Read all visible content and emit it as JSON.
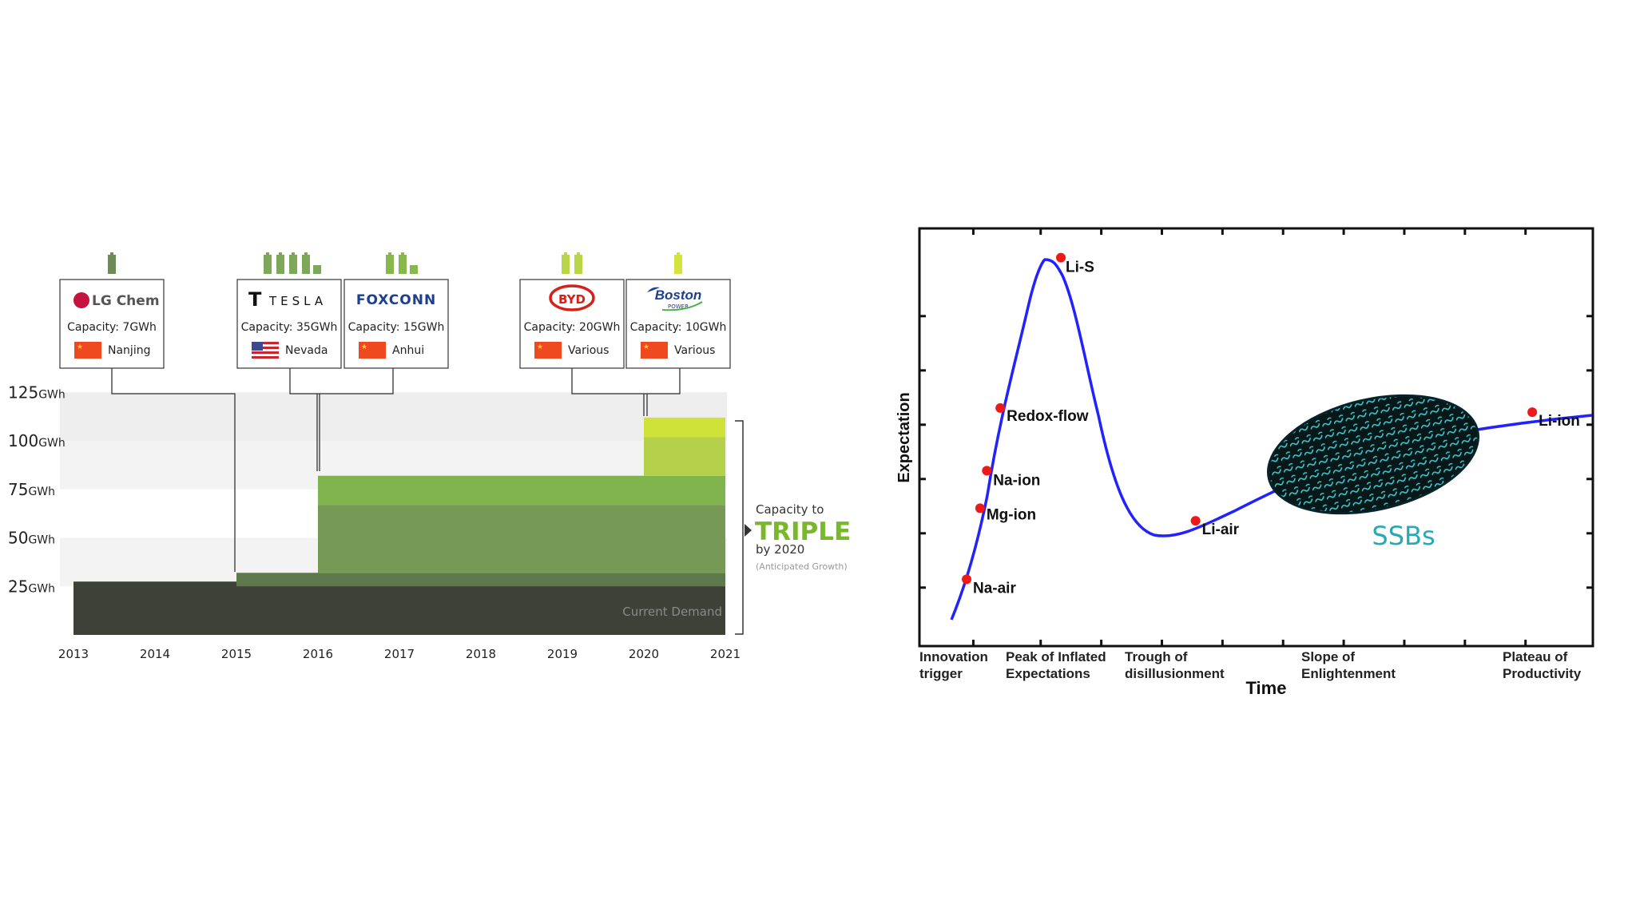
{
  "chart_data": [
    {
      "type": "area",
      "x_ticks": [
        "2013",
        "2014",
        "2015",
        "2016",
        "2017",
        "2018",
        "2019",
        "2020",
        "2021"
      ],
      "y_ticks": [
        {
          "value": 25,
          "label": "25",
          "unit": "GWh"
        },
        {
          "value": 50,
          "label": "50",
          "unit": "GWh"
        },
        {
          "value": 75,
          "label": "75",
          "unit": "GWh"
        },
        {
          "value": 100,
          "label": "100",
          "unit": "GWh"
        },
        {
          "value": 125,
          "label": "125",
          "unit": "GWh"
        }
      ],
      "ylim": [
        0,
        135
      ],
      "xlim": [
        2013,
        2021
      ],
      "current_demand": {
        "label": "Current Demand",
        "value": 25,
        "x_start": 2013,
        "x_end": 2021
      },
      "layers": [
        {
          "company": "LG Chem",
          "x_start": 2015,
          "x_end": 2021,
          "y0": 25,
          "y1": 32,
          "color": "#5e7a4c"
        },
        {
          "company": "Tesla",
          "x_start": 2016,
          "x_end": 2021,
          "y0": 32,
          "y1": 67,
          "color": "#769a55"
        },
        {
          "company": "Foxconn",
          "x_start": 2016,
          "x_end": 2021,
          "y0": 67,
          "y1": 82,
          "color": "#7fb54c"
        },
        {
          "company": "BYD",
          "x_start": 2020,
          "x_end": 2021,
          "y0": 82,
          "y1": 102,
          "color": "#b5d14c"
        },
        {
          "company": "Boston Power",
          "x_start": 2020,
          "x_end": 2021,
          "y0": 102,
          "y1": 112,
          "color": "#cfe23a"
        }
      ],
      "companies": [
        {
          "name": "LG Chem",
          "capacity": "Capacity: 7GWh",
          "location": "Nanjing",
          "flag": "china",
          "batteries": 1,
          "battery_color": "#6d8c55",
          "year": 2015
        },
        {
          "name": "TESLA",
          "capacity": "Capacity: 35GWh",
          "location": "Nevada",
          "flag": "usa",
          "batteries": 4,
          "battery_color": "#7da85a",
          "year": 2016
        },
        {
          "name": "FOXCONN",
          "capacity": "Capacity: 15GWh",
          "location": "Anhui",
          "flag": "china",
          "batteries": 2,
          "battery_color": "#86b84e",
          "year": 2016
        },
        {
          "name": "BYD",
          "capacity": "Capacity: 20GWh",
          "location": "Various",
          "flag": "china",
          "batteries": 2,
          "battery_color": "#b9d548",
          "year": 2020
        },
        {
          "name": "Boston",
          "subname": "POWER",
          "capacity": "Capacity: 10GWh",
          "location": "Various",
          "flag": "china",
          "batteries": 1,
          "battery_color": "#d3e53c",
          "year": 2020
        }
      ],
      "annotation": {
        "line1": "Capacity to",
        "big": "TRIPLE",
        "line3": "by 2020",
        "line4": "(Anticipated Growth)"
      }
    },
    {
      "type": "line",
      "xlabel": "Time",
      "ylabel": "Expectation",
      "phases": [
        "Innovation\ntrigger",
        "Peak of Inflated\nExpectations",
        "Trough of\ndisillusionment",
        "Slope of\nEnlightenment",
        "Plateau of\nProductivity"
      ],
      "points": [
        {
          "label": "Na-air",
          "x": 0.07,
          "y": 0.16
        },
        {
          "label": "Mg-ion",
          "x": 0.09,
          "y": 0.33
        },
        {
          "label": "Na-ion",
          "x": 0.1,
          "y": 0.42
        },
        {
          "label": "Redox-flow",
          "x": 0.12,
          "y": 0.57
        },
        {
          "label": "Li-S",
          "x": 0.21,
          "y": 0.93
        },
        {
          "label": "Li-air",
          "x": 0.41,
          "y": 0.3
        },
        {
          "label": "Li-ion",
          "x": 0.91,
          "y": 0.56
        }
      ],
      "highlight": {
        "label": "SSBs",
        "color": "#2aa8b4"
      },
      "curve_color": "#2020ff",
      "point_color": "#ee1a1a"
    }
  ]
}
